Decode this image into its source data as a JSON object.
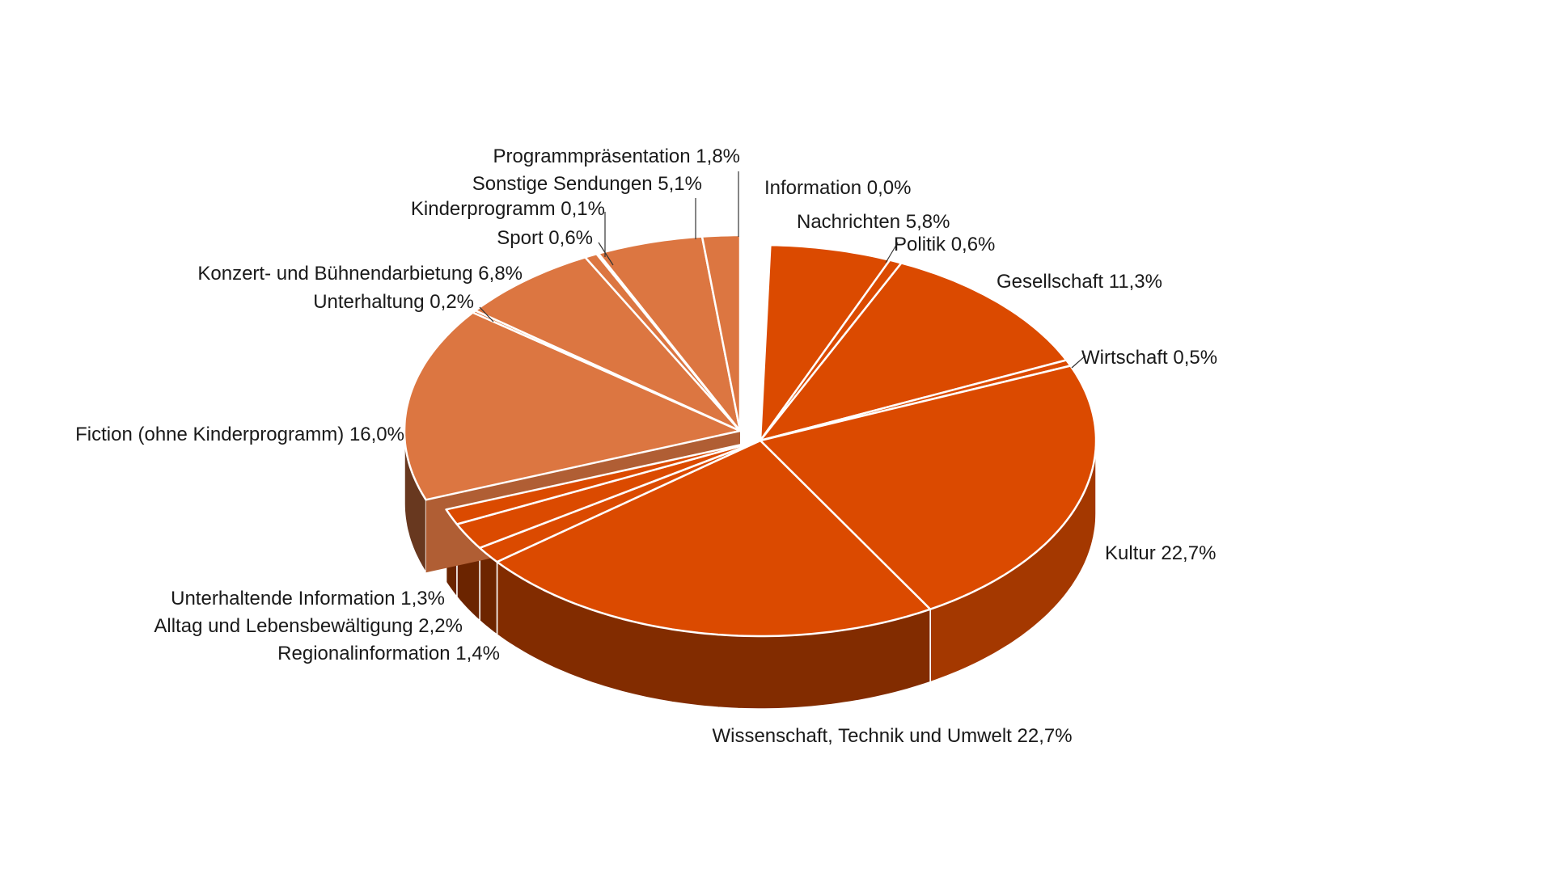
{
  "chart_data": {
    "type": "pie",
    "title": "",
    "style": "3d-exploded",
    "colors": {
      "information_group": "#db4a00",
      "entertainment_group": "#dc7641",
      "outline": "#ffffff"
    },
    "slices": [
      {
        "label": "Information 0,0%",
        "value": 0.0,
        "group": "information"
      },
      {
        "label": "Nachrichten 5,8%",
        "value": 5.8,
        "group": "information"
      },
      {
        "label": "Politik 0,6%",
        "value": 0.6,
        "group": "information"
      },
      {
        "label": "Gesellschaft 11,3%",
        "value": 11.3,
        "group": "information"
      },
      {
        "label": "Wirtschaft 0,5%",
        "value": 0.5,
        "group": "information"
      },
      {
        "label": "Kultur 22,7%",
        "value": 22.7,
        "group": "information"
      },
      {
        "label": "Wissenschaft, Technik und Umwelt 22,7%",
        "value": 22.7,
        "group": "information"
      },
      {
        "label": "Regionalinformation 1,4%",
        "value": 1.4,
        "group": "information"
      },
      {
        "label": "Alltag und Lebensbewältigung 2,2%",
        "value": 2.2,
        "group": "information"
      },
      {
        "label": "Unterhaltende Information 1,3%",
        "value": 1.3,
        "group": "information"
      },
      {
        "label": "Fiction (ohne Kinderprogramm) 16,0%",
        "value": 16.0,
        "group": "entertainment"
      },
      {
        "label": "Unterhaltung 0,2%",
        "value": 0.2,
        "group": "entertainment"
      },
      {
        "label": "Konzert- und Bühnendarbietung 6,8%",
        "value": 6.8,
        "group": "entertainment"
      },
      {
        "label": "Sport 0,6%",
        "value": 0.6,
        "group": "entertainment"
      },
      {
        "label": "Kinderprogramm 0,1%",
        "value": 0.1,
        "group": "entertainment"
      },
      {
        "label": "Sonstige Sendungen 5,1%",
        "value": 5.1,
        "group": "entertainment"
      },
      {
        "label": "Programmpräsentation 1,8%",
        "value": 1.8,
        "group": "entertainment"
      }
    ]
  }
}
